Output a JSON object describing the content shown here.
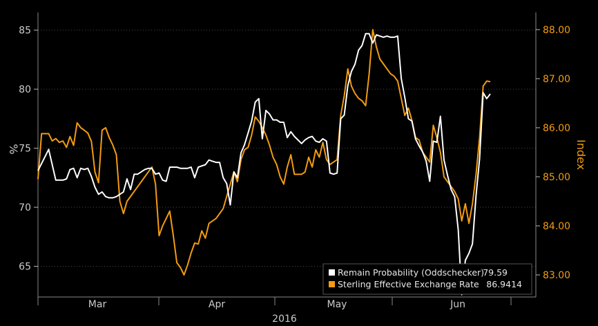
{
  "chart_data": {
    "type": "line",
    "title": "",
    "xlabel": "2016",
    "x_ticks": [
      "Mar",
      "Apr",
      "May",
      "Jun"
    ],
    "left_axis": {
      "label": "%",
      "ticks": [
        65,
        70,
        75,
        80,
        85
      ],
      "tick_labels": [
        "65",
        "70",
        "75",
        "80",
        "85"
      ],
      "ylim": [
        62.4,
        86.5
      ],
      "color": "#cccccc"
    },
    "right_axis": {
      "label": "Index",
      "ticks": [
        83,
        84,
        85,
        86,
        87,
        88
      ],
      "tick_labels": [
        "83.00",
        "84.00",
        "85.00",
        "86.00",
        "87.00",
        "88.00"
      ],
      "ylim": [
        82.55,
        88.35
      ],
      "color": "#f39c12"
    },
    "legend": {
      "position": "bottom-right",
      "entries": [
        {
          "name": "Remain Probability (Oddschecker)",
          "value": "79.59",
          "color": "#ffffff"
        },
        {
          "name": "Sterling Effective Exchange Rate",
          "value": "86.9414",
          "color": "#f39c12"
        }
      ]
    },
    "series": [
      {
        "name": "Remain Probability (Oddschecker)",
        "axis": "left",
        "color": "#ffffff",
        "points": [
          [
            0,
            73.1
          ],
          [
            3,
            74.9
          ],
          [
            5,
            72.3
          ],
          [
            7,
            72.3
          ],
          [
            8,
            72.4
          ],
          [
            9,
            73.2
          ],
          [
            10,
            73.3
          ],
          [
            11,
            72.5
          ],
          [
            12,
            73.3
          ],
          [
            13,
            73.2
          ],
          [
            14,
            73.3
          ],
          [
            15,
            72.6
          ],
          [
            16,
            71.7
          ],
          [
            17,
            71.1
          ],
          [
            18,
            71.3
          ],
          [
            19,
            70.9
          ],
          [
            20,
            70.8
          ],
          [
            21,
            70.8
          ],
          [
            22,
            70.9
          ],
          [
            23,
            71.1
          ],
          [
            24,
            71.3
          ],
          [
            25,
            72.4
          ],
          [
            26,
            71.5
          ],
          [
            27,
            72.8
          ],
          [
            28,
            72.8
          ],
          [
            29,
            73.0
          ],
          [
            30,
            73.2
          ],
          [
            31,
            73.3
          ],
          [
            32,
            73.3
          ],
          [
            33,
            72.8
          ],
          [
            34,
            72.9
          ],
          [
            35,
            72.3
          ],
          [
            36,
            72.2
          ],
          [
            37,
            73.4
          ],
          [
            38,
            73.4
          ],
          [
            39,
            73.4
          ],
          [
            40,
            73.3
          ],
          [
            41,
            73.3
          ],
          [
            42,
            73.3
          ],
          [
            43,
            73.4
          ],
          [
            44,
            72.5
          ],
          [
            45,
            73.4
          ],
          [
            46,
            73.5
          ],
          [
            47,
            73.6
          ],
          [
            48,
            74.0
          ],
          [
            49,
            73.9
          ],
          [
            50,
            73.8
          ],
          [
            51,
            73.8
          ],
          [
            52,
            72.5
          ],
          [
            53,
            72.0
          ],
          [
            54,
            70.2
          ],
          [
            55,
            73.0
          ],
          [
            56,
            72.5
          ],
          [
            57,
            74.6
          ],
          [
            58,
            75.3
          ],
          [
            59,
            76.3
          ],
          [
            60,
            77.3
          ],
          [
            61,
            78.9
          ],
          [
            62,
            79.2
          ],
          [
            63,
            75.8
          ],
          [
            64,
            78.2
          ],
          [
            65,
            77.9
          ],
          [
            66,
            77.4
          ],
          [
            67,
            77.4
          ],
          [
            68,
            77.2
          ],
          [
            69,
            77.2
          ],
          [
            70,
            75.9
          ],
          [
            71,
            76.4
          ],
          [
            72,
            76.0
          ],
          [
            73,
            75.7
          ],
          [
            74,
            75.4
          ],
          [
            75,
            75.7
          ],
          [
            76,
            75.9
          ],
          [
            77,
            76.0
          ],
          [
            78,
            75.6
          ],
          [
            79,
            75.5
          ],
          [
            80,
            75.8
          ],
          [
            81,
            75.6
          ],
          [
            82,
            72.9
          ],
          [
            83,
            72.8
          ],
          [
            84,
            72.9
          ],
          [
            85,
            77.5
          ],
          [
            86,
            77.8
          ],
          [
            87,
            80.3
          ],
          [
            88,
            81.5
          ],
          [
            89,
            82.1
          ],
          [
            90,
            83.3
          ],
          [
            91,
            83.7
          ],
          [
            92,
            84.7
          ],
          [
            93,
            84.7
          ],
          [
            94,
            83.9
          ],
          [
            95,
            84.6
          ],
          [
            96,
            84.5
          ],
          [
            97,
            84.4
          ],
          [
            98,
            84.5
          ],
          [
            99,
            84.4
          ],
          [
            100,
            84.4
          ],
          [
            101,
            84.5
          ],
          [
            102,
            80.9
          ],
          [
            103,
            79.3
          ],
          [
            104,
            77.5
          ],
          [
            105,
            77.3
          ],
          [
            106,
            75.8
          ],
          [
            107,
            75.2
          ],
          [
            108,
            74.7
          ],
          [
            109,
            73.9
          ],
          [
            110,
            72.2
          ],
          [
            111,
            75.6
          ],
          [
            112,
            75.5
          ],
          [
            113,
            77.7
          ],
          [
            114,
            74.0
          ],
          [
            115,
            72.7
          ],
          [
            116,
            71.5
          ],
          [
            117,
            70.9
          ],
          [
            118,
            68.1
          ],
          [
            119,
            62.6
          ],
          [
            120,
            65.5
          ],
          [
            121,
            66.1
          ],
          [
            122,
            66.9
          ],
          [
            123,
            71.0
          ],
          [
            124,
            74.1
          ],
          [
            125,
            79.7
          ],
          [
            126,
            79.2
          ],
          [
            127,
            79.6
          ]
        ]
      },
      {
        "name": "Sterling Effective Exchange Rate",
        "axis": "right",
        "color": "#f39c12",
        "points": [
          [
            0,
            84.95
          ],
          [
            1,
            85.88
          ],
          [
            3,
            85.88
          ],
          [
            4,
            85.73
          ],
          [
            5,
            85.78
          ],
          [
            6,
            85.7
          ],
          [
            7,
            85.73
          ],
          [
            8,
            85.6
          ],
          [
            9,
            85.82
          ],
          [
            10,
            85.64
          ],
          [
            11,
            86.1
          ],
          [
            12,
            86.0
          ],
          [
            13,
            85.95
          ],
          [
            14,
            85.89
          ],
          [
            15,
            85.72
          ],
          [
            16,
            85.1
          ],
          [
            17,
            84.88
          ],
          [
            18,
            85.95
          ],
          [
            19,
            86.0
          ],
          [
            20,
            85.8
          ],
          [
            21,
            85.65
          ],
          [
            22,
            85.45
          ],
          [
            23,
            84.5
          ],
          [
            24,
            84.25
          ],
          [
            25,
            84.5
          ],
          [
            28,
            84.8
          ],
          [
            30,
            85.0
          ],
          [
            32,
            85.2
          ],
          [
            33,
            84.85
          ],
          [
            34,
            83.8
          ],
          [
            35,
            84.0
          ],
          [
            36,
            84.15
          ],
          [
            37,
            84.3
          ],
          [
            38,
            83.8
          ],
          [
            39,
            83.25
          ],
          [
            40,
            83.15
          ],
          [
            41,
            83.0
          ],
          [
            42,
            83.2
          ],
          [
            43,
            83.45
          ],
          [
            44,
            83.65
          ],
          [
            45,
            83.63
          ],
          [
            46,
            83.9
          ],
          [
            47,
            83.75
          ],
          [
            48,
            84.05
          ],
          [
            50,
            84.15
          ],
          [
            52,
            84.35
          ],
          [
            53,
            84.6
          ],
          [
            54,
            84.85
          ],
          [
            55,
            85.1
          ],
          [
            56,
            84.9
          ],
          [
            57,
            85.35
          ],
          [
            58,
            85.55
          ],
          [
            59,
            85.6
          ],
          [
            60,
            85.85
          ],
          [
            61,
            86.22
          ],
          [
            62,
            86.13
          ],
          [
            63,
            86.0
          ],
          [
            64,
            85.85
          ],
          [
            65,
            85.65
          ],
          [
            66,
            85.4
          ],
          [
            67,
            85.25
          ],
          [
            68,
            85.0
          ],
          [
            69,
            84.85
          ],
          [
            70,
            85.2
          ],
          [
            71,
            85.45
          ],
          [
            72,
            85.05
          ],
          [
            73,
            85.05
          ],
          [
            74,
            85.05
          ],
          [
            75,
            85.1
          ],
          [
            76,
            85.4
          ],
          [
            77,
            85.2
          ],
          [
            78,
            85.55
          ],
          [
            79,
            85.4
          ],
          [
            80,
            85.7
          ],
          [
            81,
            85.35
          ],
          [
            82,
            85.25
          ],
          [
            84,
            85.35
          ],
          [
            85,
            86.25
          ],
          [
            86,
            86.65
          ],
          [
            87,
            87.2
          ],
          [
            88,
            86.85
          ],
          [
            89,
            86.7
          ],
          [
            90,
            86.6
          ],
          [
            91,
            86.55
          ],
          [
            92,
            86.45
          ],
          [
            93,
            87.1
          ],
          [
            94,
            88.0
          ],
          [
            95,
            87.65
          ],
          [
            96,
            87.4
          ],
          [
            97,
            87.3
          ],
          [
            98,
            87.2
          ],
          [
            99,
            87.1
          ],
          [
            100,
            87.05
          ],
          [
            101,
            86.95
          ],
          [
            102,
            86.6
          ],
          [
            103,
            86.25
          ],
          [
            104,
            86.4
          ],
          [
            105,
            86.15
          ],
          [
            106,
            85.8
          ],
          [
            107,
            85.75
          ],
          [
            108,
            85.5
          ],
          [
            109,
            85.4
          ],
          [
            110,
            85.3
          ],
          [
            111,
            86.05
          ],
          [
            112,
            85.8
          ],
          [
            113,
            85.5
          ],
          [
            114,
            85.0
          ],
          [
            115,
            84.9
          ],
          [
            116,
            84.8
          ],
          [
            117,
            84.7
          ],
          [
            118,
            84.55
          ],
          [
            119,
            84.1
          ],
          [
            120,
            84.45
          ],
          [
            121,
            84.05
          ],
          [
            122,
            84.45
          ],
          [
            123,
            85.05
          ],
          [
            124,
            85.8
          ],
          [
            125,
            86.85
          ],
          [
            126,
            86.95
          ],
          [
            127,
            86.94
          ]
        ]
      }
    ]
  }
}
